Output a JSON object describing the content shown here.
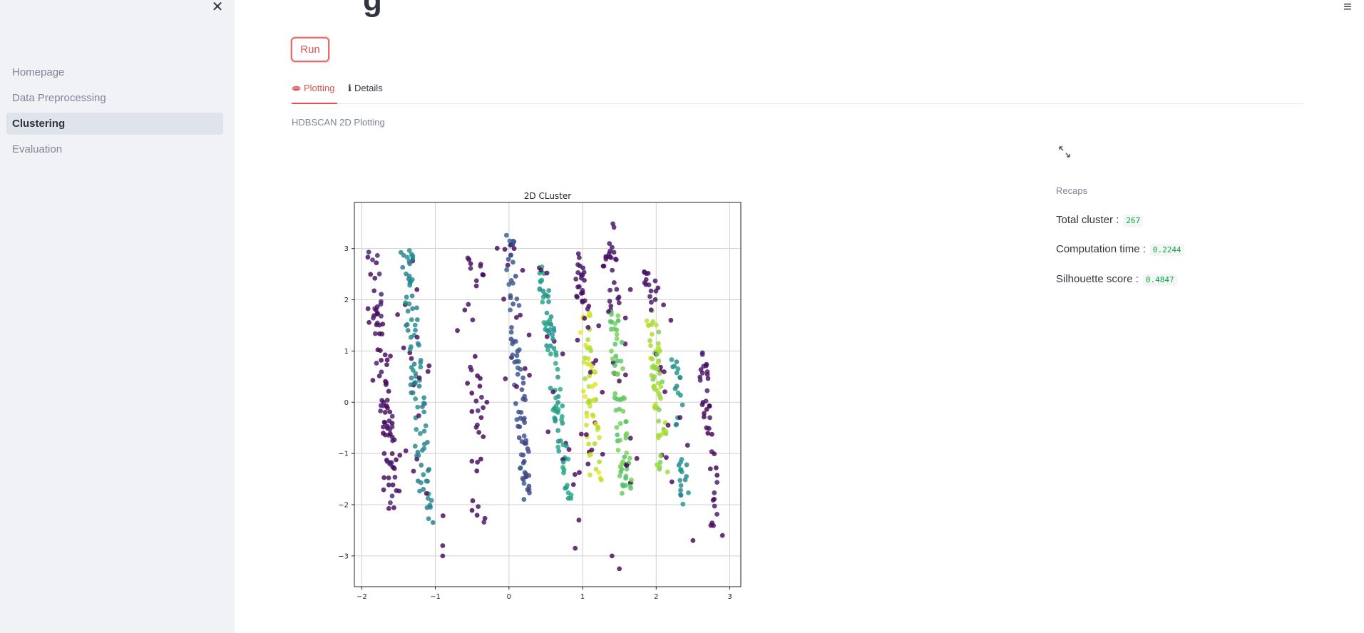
{
  "sidebar": {
    "close_glyph": "✕",
    "items": [
      {
        "label": "Homepage",
        "active": false
      },
      {
        "label": "Data Preprocessing",
        "active": false
      },
      {
        "label": "Clustering",
        "active": true
      },
      {
        "label": "Evaluation",
        "active": false
      }
    ]
  },
  "header": {
    "menu_glyph": "≡"
  },
  "main": {
    "title_fragment": "g",
    "run_label": "Run",
    "tabs": [
      {
        "label": "Plotting",
        "icon": "lips-icon",
        "active": true
      },
      {
        "label": "Details",
        "icon": "info-icon",
        "active": false
      }
    ],
    "caption": "HDBSCAN 2D Plotting"
  },
  "recap": {
    "caption": "Recaps",
    "total_cluster_label": "Total cluster :",
    "total_cluster_value": "267",
    "computation_time_label": "Computation time :",
    "computation_time_value": "0.2244",
    "silhouette_label": "Silhouette score :",
    "silhouette_value": "0.4847"
  },
  "colors": {
    "accent": "#e0554f",
    "sidebar_bg": "#f0f2f6",
    "metric_code": "#09ab3b"
  },
  "chart_data": {
    "type": "scatter",
    "title": "2D CLuster",
    "xlabel": "",
    "ylabel": "",
    "xlim": [
      -2.1,
      3.15
    ],
    "ylim": [
      -3.6,
      3.9
    ],
    "xticks": [
      -2,
      -1,
      0,
      1,
      2,
      3
    ],
    "yticks": [
      3,
      2,
      1,
      0,
      -1,
      -2,
      -3
    ],
    "grid": true,
    "colormap": "viridis",
    "bands": [
      {
        "x_top": -1.85,
        "x_bottom": -1.55,
        "y_top": 3.0,
        "y_bottom": -2.2,
        "color_t": 0.05,
        "n": 95,
        "width": 0.08
      },
      {
        "x_top": -1.4,
        "x_bottom": -1.1,
        "y_top": 3.0,
        "y_bottom": -2.4,
        "color_t": 0.45,
        "n": 110,
        "width": 0.09
      },
      {
        "x_top": -0.45,
        "x_bottom": -0.45,
        "y_top": 2.9,
        "y_bottom": -2.5,
        "color_t": 0.03,
        "n": 40,
        "width": 0.12
      },
      {
        "x_top": 0.0,
        "x_bottom": 0.25,
        "y_top": 3.3,
        "y_bottom": -1.9,
        "color_t": 0.25,
        "n": 95,
        "width": 0.07
      },
      {
        "x_top": 0.45,
        "x_bottom": 0.8,
        "y_top": 2.7,
        "y_bottom": -1.9,
        "color_t": 0.55,
        "n": 95,
        "width": 0.07
      },
      {
        "x_top": 0.95,
        "x_bottom": 1.2,
        "y_top": 2.9,
        "y_bottom": -1.6,
        "color_t": 0.92,
        "n": 95,
        "width": 0.09
      },
      {
        "x_top": 1.35,
        "x_bottom": 1.6,
        "y_top": 3.5,
        "y_bottom": -1.8,
        "color_t": 0.75,
        "n": 105,
        "width": 0.08
      },
      {
        "x_top": 1.9,
        "x_bottom": 2.1,
        "y_top": 2.6,
        "y_bottom": -1.4,
        "color_t": 0.85,
        "n": 85,
        "width": 0.08
      },
      {
        "x_top": 2.25,
        "x_bottom": 2.4,
        "y_top": 1.2,
        "y_bottom": -2.0,
        "color_t": 0.5,
        "n": 35,
        "width": 0.06
      },
      {
        "x_top": 2.6,
        "x_bottom": 2.85,
        "y_top": 1.2,
        "y_bottom": -2.6,
        "color_t": 0.03,
        "n": 40,
        "width": 0.06
      }
    ],
    "noise_points": [
      [
        -0.9,
        -2.8
      ],
      [
        -0.9,
        -3.0
      ],
      [
        1.4,
        -3.0
      ],
      [
        1.5,
        -3.25
      ],
      [
        0.9,
        -2.85
      ],
      [
        -0.6,
        1.8
      ],
      [
        -0.7,
        1.4
      ],
      [
        -0.3,
        0.0
      ],
      [
        2.5,
        -2.7
      ],
      [
        2.9,
        -2.6
      ],
      [
        2.2,
        1.6
      ],
      [
        -1.1,
        0.6
      ],
      [
        0.6,
        0.2
      ],
      [
        0.95,
        -2.3
      ],
      [
        1.65,
        2.2
      ],
      [
        2.1,
        1.9
      ]
    ]
  }
}
